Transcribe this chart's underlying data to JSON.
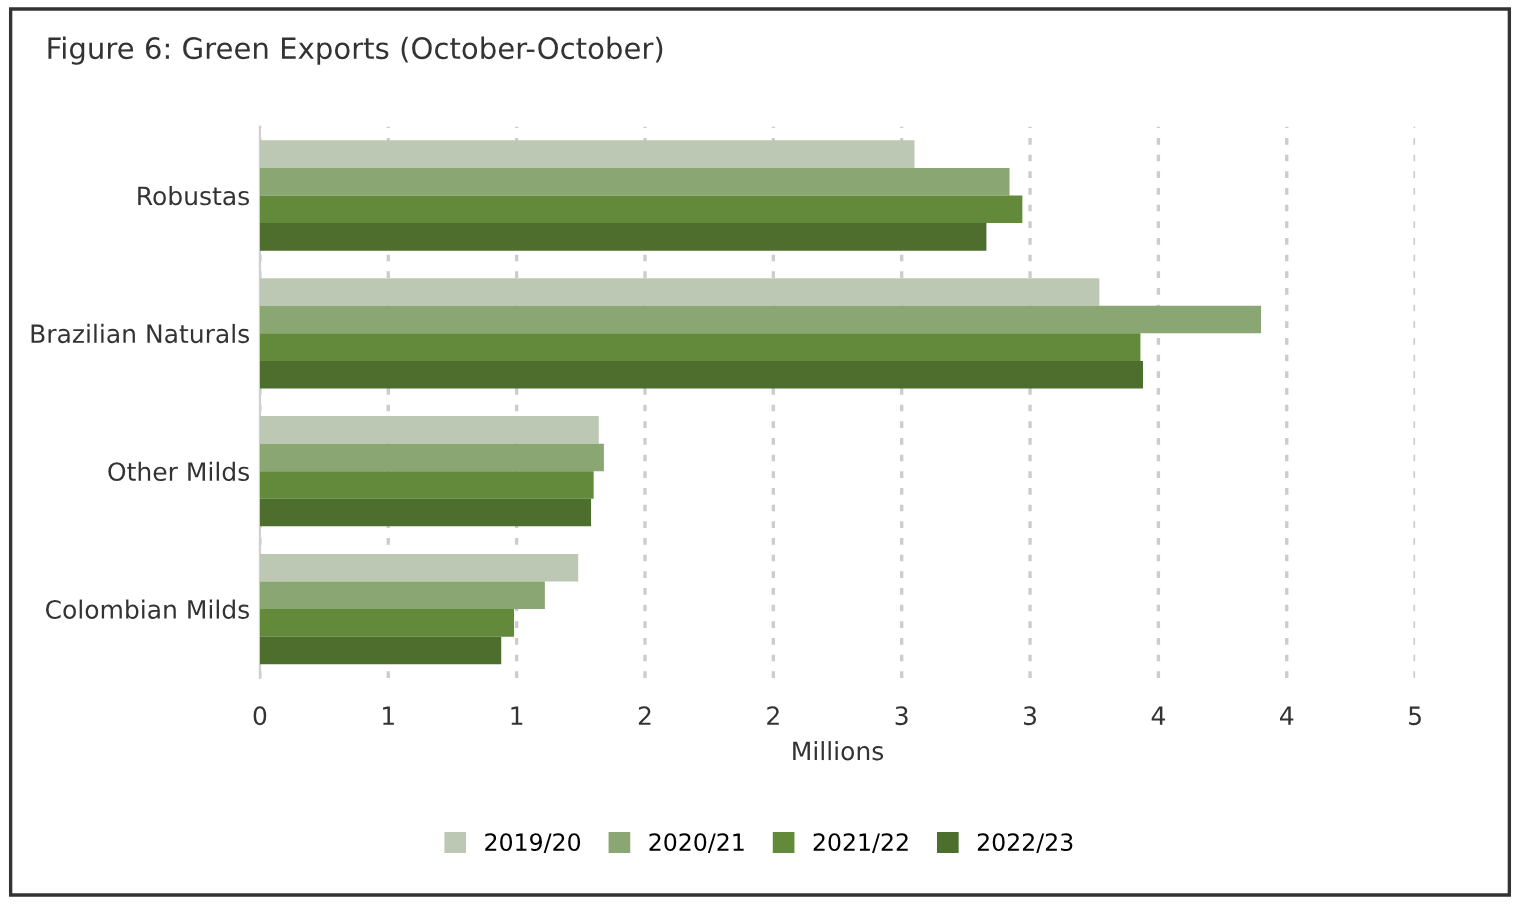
{
  "chart_data": {
    "type": "bar",
    "orientation": "horizontal",
    "title": "Figure 6: Green Exports (October-October)",
    "xlabel": "Millions",
    "categories": [
      "Robustas",
      "Brazilian Naturals",
      "Other Milds",
      "Colombian Milds"
    ],
    "series": [
      {
        "name": "2019/20",
        "color": "#bcc8b4",
        "values": [
          2.55,
          3.27,
          1.32,
          1.24
        ]
      },
      {
        "name": "2020/21",
        "color": "#8aa672",
        "values": [
          2.92,
          3.9,
          1.34,
          1.11
        ]
      },
      {
        "name": "2021/22",
        "color": "#628a3a",
        "values": [
          2.97,
          3.43,
          1.3,
          0.99
        ]
      },
      {
        "name": "2022/23",
        "color": "#4e6e2e",
        "values": [
          2.83,
          3.44,
          1.29,
          0.94
        ]
      }
    ],
    "xlim": [
      0,
      4.5
    ],
    "xticks": [
      0,
      {
        "value": 0.5,
        "label": "1"
      },
      1,
      {
        "value": 1.5,
        "label": "2"
      },
      2,
      {
        "value": 2.5,
        "label": "3"
      },
      3,
      {
        "value": 3.5,
        "label": "4"
      },
      4,
      {
        "value": 4.5,
        "label": "5"
      }
    ],
    "grid": "x",
    "legend": "bottom"
  }
}
